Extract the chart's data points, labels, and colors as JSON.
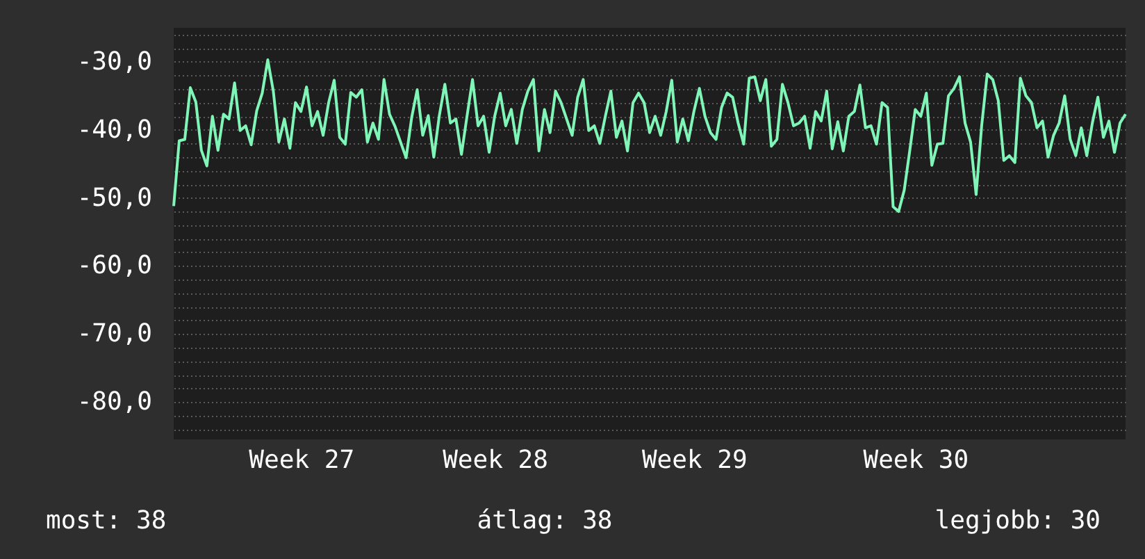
{
  "chart_data": {
    "type": "line",
    "ylim": [
      -85.5,
      -25
    ],
    "categories": [
      null,
      null,
      null,
      null,
      null,
      null,
      null,
      null,
      null,
      null,
      null,
      null,
      null,
      null,
      null,
      null,
      null,
      null,
      null,
      null,
      null,
      null,
      null,
      "Week 27",
      null,
      null,
      null,
      null,
      null,
      null,
      null,
      null,
      null,
      null,
      null,
      null,
      null,
      null,
      null,
      null,
      null,
      null,
      null,
      null,
      null,
      null,
      null,
      null,
      null,
      null,
      null,
      null,
      null,
      null,
      null,
      null,
      null,
      null,
      "Week 28",
      null,
      null,
      null,
      null,
      null,
      null,
      null,
      null,
      null,
      null,
      null,
      null,
      null,
      null,
      null,
      null,
      null,
      null,
      null,
      null,
      null,
      null,
      null,
      null,
      null,
      null,
      null,
      null,
      null,
      null,
      null,
      null,
      null,
      null,
      null,
      "Week 29",
      null,
      null,
      null,
      null,
      null,
      null,
      null,
      null,
      null,
      null,
      null,
      null,
      null,
      null,
      null,
      null,
      null,
      null,
      null,
      null,
      null,
      null,
      null,
      null,
      null,
      null,
      null,
      null,
      null,
      null,
      null,
      null,
      null,
      null,
      null,
      null,
      null,
      null,
      null,
      "Week 30",
      null,
      null,
      null,
      null,
      null,
      null,
      null,
      null,
      null,
      null,
      null,
      null,
      null,
      null,
      null,
      null,
      null,
      null,
      null,
      null,
      null,
      null,
      null,
      null,
      null,
      null,
      null,
      null,
      null,
      null,
      null,
      null,
      null,
      null,
      null,
      null,
      null,
      null
    ],
    "yticks": [
      {
        "value": -30,
        "label": "-30,0"
      },
      {
        "value": -40,
        "label": "-40,0"
      },
      {
        "value": -50,
        "label": "-50,0"
      },
      {
        "value": -60,
        "label": "-60,0"
      },
      {
        "value": -70,
        "label": "-70,0"
      },
      {
        "value": -80,
        "label": "-80,0"
      },
      {
        "value": -84,
        "label": null
      },
      {
        "value": -82,
        "label": null
      },
      {
        "value": -78,
        "label": null
      },
      {
        "value": -76,
        "label": null
      },
      {
        "value": -74,
        "label": null
      },
      {
        "value": -72,
        "label": null
      },
      {
        "value": -68,
        "label": null
      },
      {
        "value": -66,
        "label": null
      },
      {
        "value": -64,
        "label": null
      },
      {
        "value": -62,
        "label": null
      },
      {
        "value": -58,
        "label": null
      },
      {
        "value": -56,
        "label": null
      },
      {
        "value": -54,
        "label": null
      },
      {
        "value": -52,
        "label": null
      },
      {
        "value": -48,
        "label": null
      },
      {
        "value": -46,
        "label": null
      },
      {
        "value": -44,
        "label": null
      },
      {
        "value": -42,
        "label": null
      },
      {
        "value": -38,
        "label": null
      },
      {
        "value": -36,
        "label": null
      },
      {
        "value": -34,
        "label": null
      },
      {
        "value": -32,
        "label": null
      },
      {
        "value": -28,
        "label": null
      },
      {
        "value": -26,
        "label": null
      }
    ],
    "grid": "y",
    "line_style": "solid",
    "marker": "none",
    "annotations": [
      "most: 38",
      "átlag: 38",
      "legjobb: 30"
    ],
    "series": [
      {
        "color": "#80f5b8",
        "values": [
          -51.2,
          -41.6,
          -41.4,
          -33.8,
          -35.9,
          -43,
          -45.3,
          -38,
          -43,
          -37.7,
          -38.4,
          -33.1,
          -40.1,
          -39.4,
          -42.2,
          -37.2,
          -34.6,
          -29.7,
          -34.3,
          -41.8,
          -38.4,
          -42.7,
          -36,
          -37.3,
          -33.7,
          -39.4,
          -37.3,
          -40.8,
          -36,
          -32.7,
          -41.1,
          -42.1,
          -34.5,
          -35.2,
          -34.1,
          -41.8,
          -39,
          -41.4,
          -32.6,
          -37.7,
          -39.5,
          -41.8,
          -44.1,
          -38.2,
          -34.1,
          -40.8,
          -37.9,
          -44,
          -37.9,
          -33.3,
          -39,
          -38.4,
          -43.6,
          -38,
          -32.6,
          -39.4,
          -38,
          -43.3,
          -38,
          -34.6,
          -39.4,
          -37,
          -42,
          -37,
          -34.3,
          -32.6,
          -43.1,
          -37,
          -40.4,
          -34.3,
          -36,
          -38.4,
          -40.8,
          -35.2,
          -32.6,
          -40.1,
          -39.4,
          -42,
          -38,
          -34.3,
          -41.1,
          -38.7,
          -43.1,
          -36,
          -34.6,
          -36,
          -40.4,
          -38,
          -40.8,
          -37.3,
          -32.7,
          -41.8,
          -38.4,
          -41.6,
          -37.3,
          -33.9,
          -38,
          -40.4,
          -41.4,
          -36.7,
          -34.6,
          -35.2,
          -39,
          -42.1,
          -32.4,
          -32.2,
          -35.7,
          -32.6,
          -42.4,
          -41.4,
          -33.3,
          -36,
          -39.4,
          -39,
          -38,
          -42.7,
          -37.3,
          -38.7,
          -34.3,
          -42.8,
          -38.8,
          -43.1,
          -38,
          -37.3,
          -33.4,
          -39.7,
          -39.4,
          -42.1,
          -36,
          -36.7,
          -51.3,
          -52,
          -48.9,
          -43.1,
          -37,
          -38,
          -34.6,
          -45.2,
          -42.1,
          -42,
          -35,
          -33.9,
          -32.2,
          -39,
          -41.8,
          -49.5,
          -39.4,
          -31.8,
          -32.6,
          -35.7,
          -44.5,
          -43.8,
          -44.8,
          -32.4,
          -35,
          -36,
          -39.7,
          -38.7,
          -44,
          -40.8,
          -39,
          -35,
          -41.4,
          -43.8,
          -39.7,
          -43.8,
          -39,
          -35.2,
          -41.1,
          -38.7,
          -43.3,
          -39,
          -37.7
        ]
      }
    ]
  }
}
